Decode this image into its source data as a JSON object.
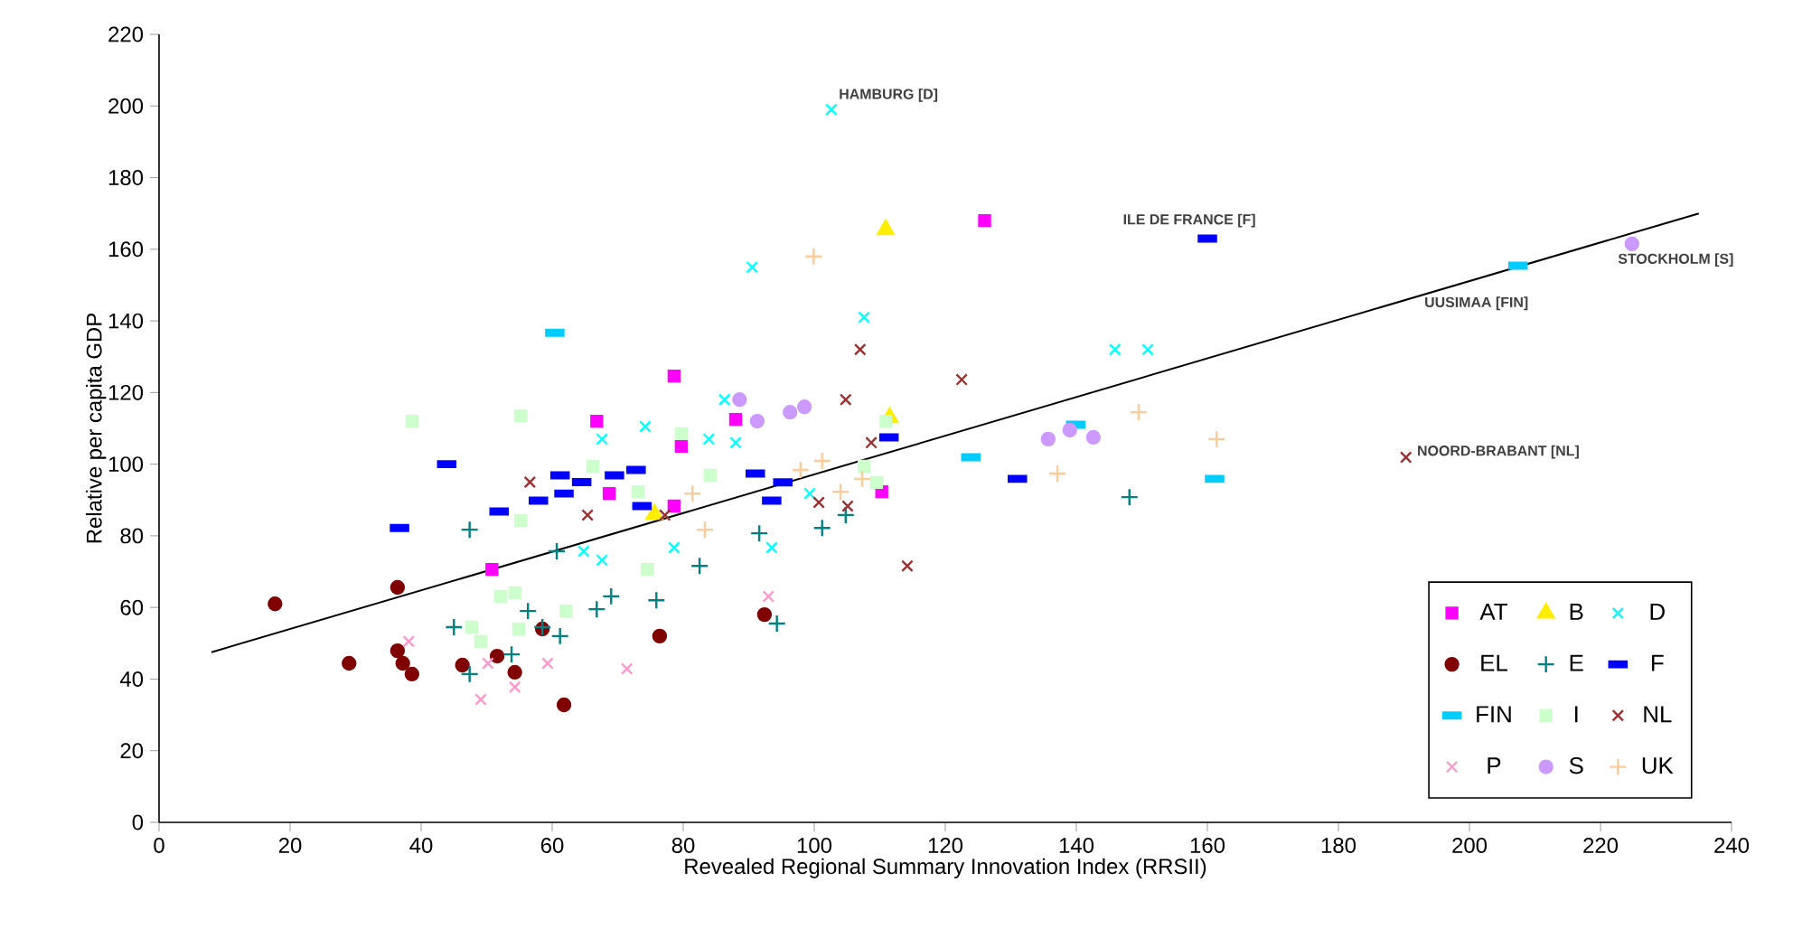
{
  "chart_data": {
    "type": "scatter",
    "xlabel": "Revealed Regional Summary Innovation Index (RRSII)",
    "ylabel": "Relative per capita GDP",
    "xlim": [
      0,
      240
    ],
    "xticks": [
      0,
      20,
      40,
      60,
      80,
      100,
      120,
      140,
      160,
      180,
      200,
      220,
      240
    ],
    "ylim": [
      0,
      220
    ],
    "yticks": [
      0,
      20,
      40,
      60,
      80,
      100,
      120,
      140,
      160,
      180,
      200,
      220
    ],
    "grid": false,
    "legend": "bottom right",
    "annotations": [
      {
        "text": "HAMBURG [D]",
        "x": 102.6,
        "y": 199
      },
      {
        "text": "ILE DE FRANCE [F]",
        "x": 160,
        "y": 163
      },
      {
        "text": "UUSIMAA [FIN]",
        "x": 207.4,
        "y": 155.4
      },
      {
        "text": "STOCKHOLM [S]",
        "x": 224.8,
        "y": 161.5
      },
      {
        "text": "NOORD-BRABANT [NL]",
        "x": 190.3,
        "y": 101.9
      }
    ],
    "series": [
      {
        "name": "AT",
        "color": "#ff00ff",
        "marker": "square",
        "x": [
          126,
          78.6,
          66.8,
          88,
          79.7,
          68.7,
          78.6,
          110.3,
          50.8
        ],
        "values": [
          168,
          124.6,
          112,
          112.5,
          105,
          91.8,
          88.3,
          92.3,
          70.6
        ]
      },
      {
        "name": "B",
        "color": "#ffee00",
        "marker": "triangle",
        "x": [
          110.9,
          111.5,
          75.6
        ],
        "values": [
          165.5,
          113,
          86
        ]
      },
      {
        "name": "D",
        "color": "#00ffff",
        "marker": "cross",
        "x": [
          102.6,
          90.5,
          107.6,
          74.2,
          86.3,
          67.6,
          83.9,
          88,
          64.8,
          67.6,
          78.6,
          93.5,
          99.3,
          145.9,
          150.9
        ],
        "values": [
          199,
          155,
          141,
          110.5,
          118,
          107,
          107,
          106,
          75.7,
          73.2,
          76.7,
          76.7,
          91.8,
          132,
          132
        ]
      },
      {
        "name": "EL",
        "color": "#800000",
        "marker": "circle",
        "x": [
          17.7,
          36.4,
          29,
          36.4,
          37.2,
          38.6,
          46.3,
          51.6,
          54.3,
          58.5,
          61.8,
          76.4,
          92.4
        ],
        "values": [
          61,
          65.6,
          44.4,
          47.9,
          44.4,
          41.4,
          43.9,
          46.4,
          41.9,
          54,
          32.8,
          52,
          58
        ]
      },
      {
        "name": "E",
        "color": "#008080",
        "marker": "plus",
        "x": [
          47.4,
          45,
          47.4,
          53.8,
          56.3,
          58.5,
          61.2,
          60.7,
          66.8,
          69,
          75.9,
          82.5,
          91.6,
          94.3,
          101.2,
          104.8,
          148.1
        ],
        "values": [
          81.7,
          54.5,
          41.4,
          46.9,
          59,
          54.5,
          52,
          75.7,
          59.5,
          63.1,
          62,
          71.6,
          80.7,
          55.5,
          82.2,
          85.8,
          90.8
        ]
      },
      {
        "name": "F",
        "color": "#0000ff",
        "marker": "square",
        "x": [
          36.7,
          43.9,
          51.9,
          57.9,
          61.8,
          61.2,
          64.5,
          69.5,
          72.8,
          73.7,
          91,
          95.2,
          93.5,
          111.4,
          131,
          160
        ],
        "values": [
          82.2,
          100,
          86.8,
          89.8,
          91.8,
          96.9,
          95,
          96.9,
          98.4,
          88.3,
          97.4,
          94.9,
          89.8,
          107.5,
          95.9,
          163
        ]
      },
      {
        "name": "FIN",
        "color": "#00ccff",
        "marker": "square",
        "x": [
          60.4,
          123.9,
          139.9,
          161.1,
          207.4
        ],
        "values": [
          136.7,
          101.9,
          111,
          95.9,
          155.4
        ]
      },
      {
        "name": "I",
        "color": "#ccffcc",
        "marker": "square",
        "x": [
          38.6,
          55.2,
          66.2,
          79.7,
          73.1,
          84.1,
          55.2,
          74.5,
          52.1,
          54.3,
          62.1,
          54.9,
          47.7,
          49.1,
          107.6,
          109.5,
          110.9
        ],
        "values": [
          112,
          113.5,
          99.4,
          108.5,
          92.3,
          96.9,
          84.3,
          70.6,
          63.1,
          64.1,
          59,
          54,
          54.5,
          50.5,
          99.4,
          94.9,
          112
        ]
      },
      {
        "name": "NL",
        "color": "#993333",
        "marker": "cross",
        "x": [
          56.6,
          65.4,
          77.2,
          100.7,
          105.1,
          104.8,
          107,
          108.7,
          114.2,
          122.5,
          190.3
        ],
        "values": [
          95,
          85.8,
          85.8,
          89.3,
          88.3,
          118,
          132,
          106,
          71.6,
          123.6,
          101.9
        ]
      },
      {
        "name": "P",
        "color": "#ff99cc",
        "marker": "cross",
        "x": [
          38.1,
          50.2,
          49.1,
          54.3,
          59.3,
          71.4,
          93
        ],
        "values": [
          50.5,
          44.4,
          34.3,
          37.8,
          44.4,
          42.9,
          63.1
        ]
      },
      {
        "name": "S",
        "color": "#cc99ff",
        "marker": "circle",
        "x": [
          88.6,
          91.3,
          96.3,
          98.5,
          135.7,
          139,
          142.6,
          224.8
        ],
        "values": [
          118,
          112,
          114.5,
          116,
          107,
          109.5,
          107.5,
          161.5
        ]
      },
      {
        "name": "UK",
        "color": "#ffcc99",
        "marker": "plus",
        "x": [
          99.9,
          81.4,
          83.3,
          97.9,
          101.2,
          104,
          107.3,
          149.5,
          161.4,
          137.1
        ],
        "values": [
          158,
          91.8,
          81.7,
          98.4,
          100.9,
          92.3,
          95.9,
          114.5,
          107,
          97.4
        ]
      },
      {
        "type": "line",
        "color": "#000000",
        "marker": "none",
        "x": [
          8,
          235
        ],
        "values": [
          47.5,
          170
        ]
      }
    ]
  }
}
